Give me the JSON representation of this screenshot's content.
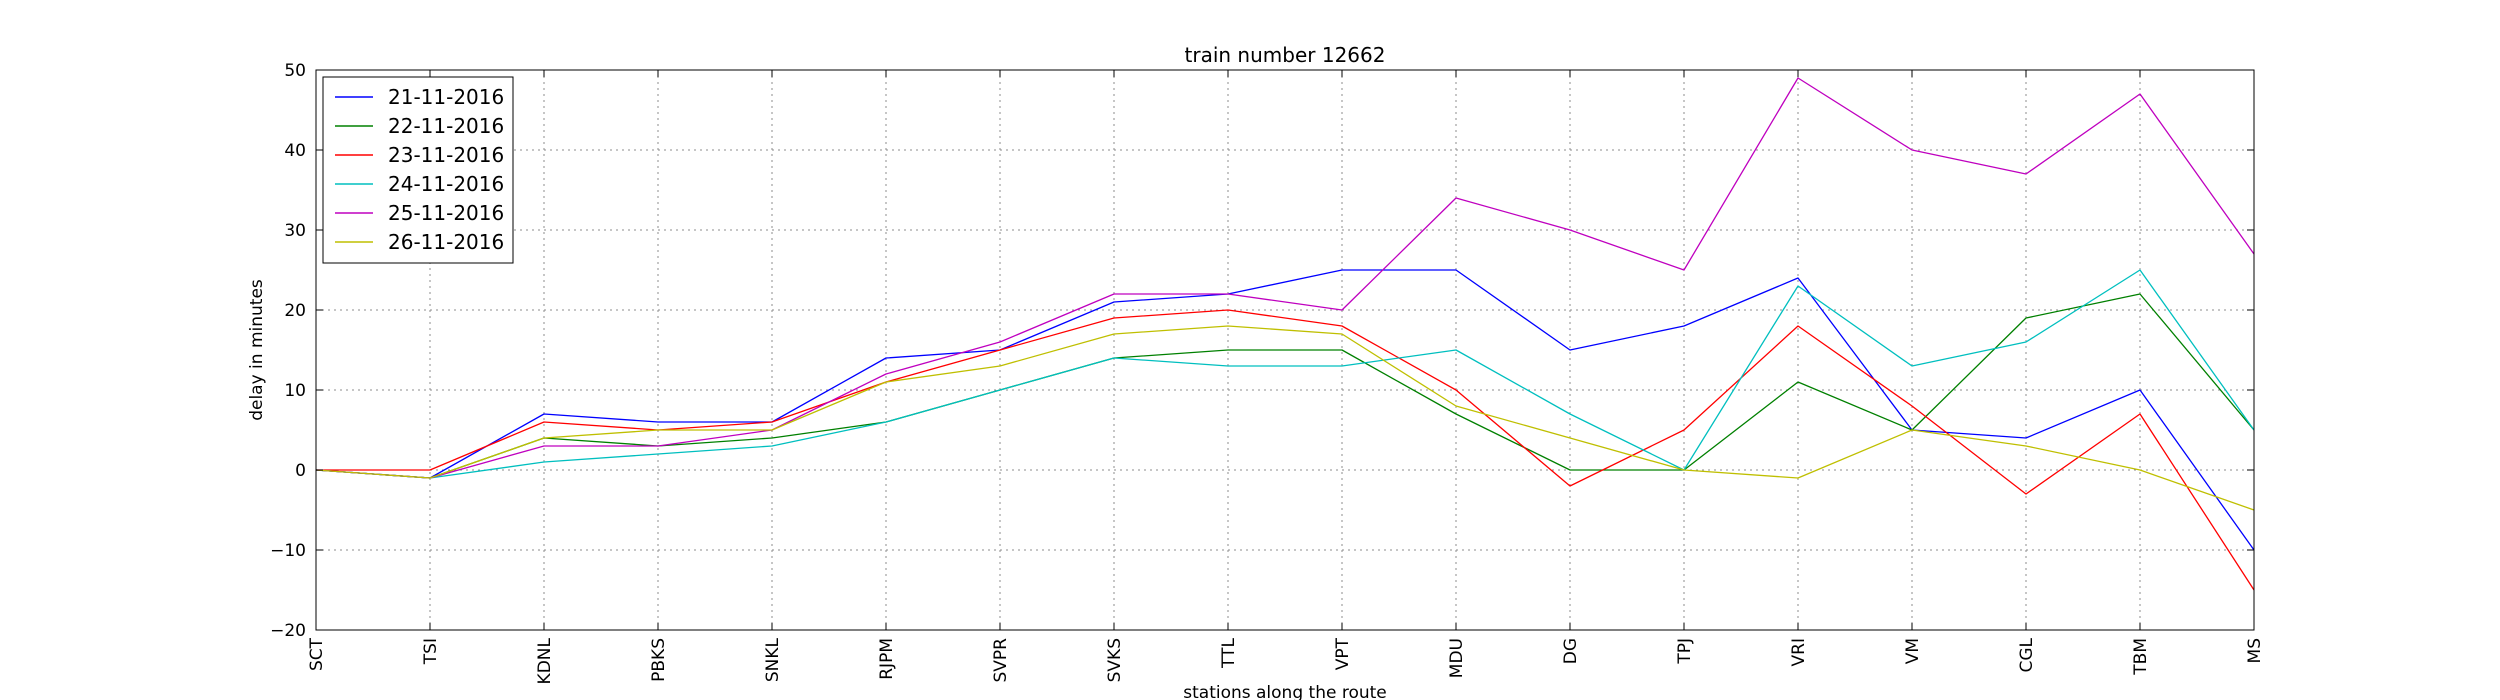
{
  "chart_data": {
    "type": "line",
    "title": "train number 12662",
    "xlabel": "stations along the route",
    "ylabel": "delay in minutes",
    "categories": [
      "SCT",
      "TSI",
      "KDNL",
      "PBKS",
      "SNKL",
      "RJPM",
      "SVPR",
      "SVKS",
      "TTL",
      "VPT",
      "MDU",
      "DG",
      "TPJ",
      "VRI",
      "VM",
      "CGL",
      "TBM",
      "MS"
    ],
    "ylim": [
      -20,
      50
    ],
    "yticks": [
      -20,
      -10,
      0,
      10,
      20,
      30,
      40,
      50
    ],
    "yticklabels": [
      "−20",
      "−10",
      "0",
      "10",
      "20",
      "30",
      "40",
      "50"
    ],
    "grid": true,
    "legend_position": "top-left",
    "series": [
      {
        "name": "21-11-2016",
        "color": "#0000ff",
        "values": [
          0,
          -1,
          7,
          6,
          6,
          14,
          15,
          21,
          22,
          25,
          25,
          15,
          18,
          24,
          5,
          4,
          10,
          -10
        ]
      },
      {
        "name": "22-11-2016",
        "color": "#008000",
        "values": [
          0,
          -1,
          4,
          3,
          4,
          6,
          10,
          14,
          15,
          15,
          7,
          0,
          0,
          11,
          5,
          19,
          22,
          5
        ]
      },
      {
        "name": "23-11-2016",
        "color": "#ff0000",
        "values": [
          0,
          0,
          6,
          5,
          6,
          11,
          15,
          19,
          20,
          18,
          10,
          -2,
          5,
          18,
          8,
          -3,
          7,
          -15
        ]
      },
      {
        "name": "24-11-2016",
        "color": "#00bfbf",
        "values": [
          0,
          -1,
          1,
          2,
          3,
          6,
          10,
          14,
          13,
          13,
          15,
          7,
          0,
          23,
          13,
          16,
          25,
          5
        ]
      },
      {
        "name": "25-11-2016",
        "color": "#bf00bf",
        "values": [
          0,
          -1,
          3,
          3,
          5,
          12,
          16,
          22,
          22,
          20,
          34,
          30,
          25,
          49,
          40,
          37,
          47,
          27
        ]
      },
      {
        "name": "26-11-2016",
        "color": "#bfbf00",
        "values": [
          0,
          -1,
          4,
          5,
          5,
          11,
          13,
          17,
          18,
          17,
          8,
          4,
          0,
          -1,
          5,
          3,
          0,
          -5
        ]
      }
    ]
  }
}
